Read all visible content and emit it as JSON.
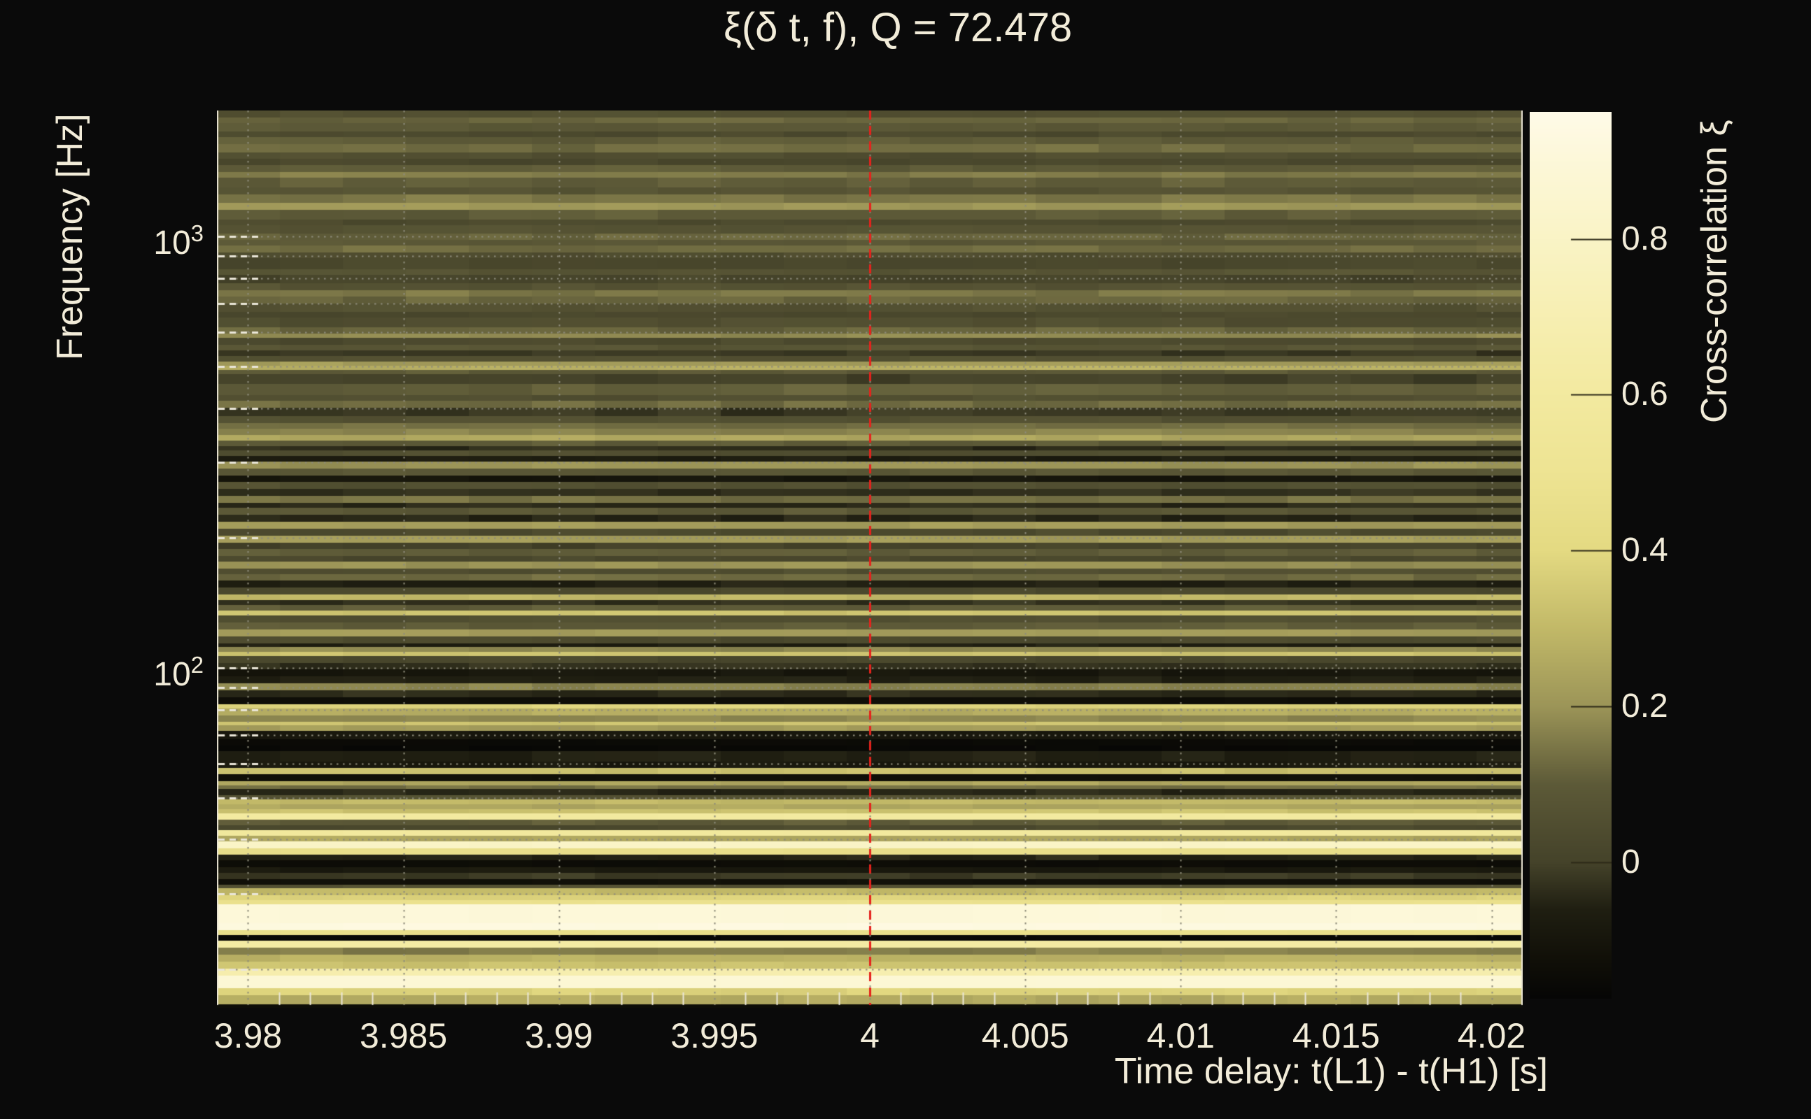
{
  "figure": {
    "background": "#0a0a0a",
    "text_color": "#f2ecd9",
    "frame_color": "#e8e3d2"
  },
  "chart_data": {
    "type": "heatmap",
    "title": "ξ(δ t, f), Q = 72.478",
    "xlabel": "Time delay: t(L1) - t(H1) [s]",
    "ylabel": "Frequency [Hz]",
    "x_range": [
      3.979,
      4.021
    ],
    "x_major_ticks": [
      3.98,
      3.985,
      3.99,
      3.995,
      4,
      4.005,
      4.01,
      4.015,
      4.02
    ],
    "x_tick_labels": [
      "3.98",
      "3.985",
      "3.99",
      "3.995",
      "4",
      "4.005",
      "4.01",
      "4.015",
      "4.02"
    ],
    "x_minor_step": 0.001,
    "y_scale": "log",
    "y_range_hz": [
      16.3,
      1958
    ],
    "y_major_ticks": [
      {
        "f": 100,
        "base": "10",
        "exp": "2"
      },
      {
        "f": 1000,
        "base": "10",
        "exp": "3"
      }
    ],
    "y_minor_ticks_hz": [
      20,
      30,
      40,
      50,
      60,
      70,
      80,
      90,
      200,
      300,
      400,
      500,
      600,
      700,
      800,
      900
    ],
    "marker_line": {
      "x": 4,
      "color": "#e6221c",
      "style": "dashed"
    },
    "grid": {
      "color": "#8d8b7a",
      "style": "dotted"
    },
    "colorbar": {
      "label": "Cross-correlation ξ",
      "range": [
        -0.175,
        0.963
      ],
      "ticks": [
        0,
        0.2,
        0.4,
        0.6,
        0.8
      ],
      "tick_labels": [
        "0",
        "0.2",
        "0.4",
        "0.6",
        "0.8"
      ]
    },
    "colormap": [
      [
        -0.175,
        "#060605"
      ],
      [
        -0.12,
        "#121109"
      ],
      [
        -0.06,
        "#201f12"
      ],
      [
        0.0,
        "#45432a"
      ],
      [
        0.1,
        "#5d5a38"
      ],
      [
        0.2,
        "#9c9558"
      ],
      [
        0.3,
        "#c2b968"
      ],
      [
        0.4,
        "#e4da82"
      ],
      [
        0.5,
        "#eee493"
      ],
      [
        0.6,
        "#f3eaa0"
      ],
      [
        0.7,
        "#f7efb2"
      ],
      [
        0.8,
        "#faf4c6"
      ],
      [
        0.9,
        "#fdf8d9"
      ],
      [
        0.963,
        "#fffbe8"
      ]
    ],
    "rows": [
      [
        10,
        0.06
      ],
      [
        8,
        0.12
      ],
      [
        12,
        0.09
      ],
      [
        8,
        0.03
      ],
      [
        10,
        0.1
      ],
      [
        12,
        0.13
      ],
      [
        9,
        0.05
      ],
      [
        9,
        0.02
      ],
      [
        10,
        0.1
      ],
      [
        8,
        0.16
      ],
      [
        14,
        0.11
      ],
      [
        10,
        0.07
      ],
      [
        12,
        0.15
      ],
      [
        10,
        0.21
      ],
      [
        14,
        0.1
      ],
      [
        8,
        0.03
      ],
      [
        12,
        0.07
      ],
      [
        9,
        0.12
      ],
      [
        8,
        0.09
      ],
      [
        10,
        0.13
      ],
      [
        8,
        0.04
      ],
      [
        16,
        0.02
      ],
      [
        8,
        0.08
      ],
      [
        12,
        0.01
      ],
      [
        10,
        0.07
      ],
      [
        9,
        0.15
      ],
      [
        10,
        0.12
      ],
      [
        12,
        0.06
      ],
      [
        8,
        0.02
      ],
      [
        14,
        0.05
      ],
      [
        9,
        0.12
      ],
      [
        6,
        0.18
      ],
      [
        10,
        0.03
      ],
      [
        8,
        0.08
      ],
      [
        8,
        -0.02
      ],
      [
        8,
        0.06
      ],
      [
        6,
        0.22
      ],
      [
        6,
        0.28
      ],
      [
        6,
        0.1
      ],
      [
        14,
        0.0
      ],
      [
        16,
        0.11
      ],
      [
        8,
        0.05
      ],
      [
        10,
        0.13
      ],
      [
        12,
        -0.02
      ],
      [
        10,
        0.06
      ],
      [
        8,
        0.13
      ],
      [
        9,
        0.17
      ],
      [
        8,
        0.25
      ],
      [
        8,
        0.1
      ],
      [
        6,
        -0.04
      ],
      [
        8,
        0.05
      ],
      [
        8,
        -0.07
      ],
      [
        10,
        0.2
      ],
      [
        10,
        0.09
      ],
      [
        9,
        -0.1
      ],
      [
        10,
        0.06
      ],
      [
        10,
        -0.03
      ],
      [
        10,
        0.14
      ],
      [
        7,
        -0.04
      ],
      [
        10,
        0.09
      ],
      [
        10,
        -0.05
      ],
      [
        10,
        0.22
      ],
      [
        10,
        0.03
      ],
      [
        10,
        0.22
      ],
      [
        9,
        0.0
      ],
      [
        10,
        0.1
      ],
      [
        8,
        0.02
      ],
      [
        10,
        0.2
      ],
      [
        8,
        0.05
      ],
      [
        9,
        0.13
      ],
      [
        10,
        -0.06
      ],
      [
        10,
        0.02
      ],
      [
        8,
        0.3
      ],
      [
        7,
        -0.03
      ],
      [
        8,
        0.1
      ],
      [
        7,
        0.33
      ],
      [
        10,
        0.05
      ],
      [
        10,
        0.1
      ],
      [
        10,
        0.22
      ],
      [
        10,
        0.03
      ],
      [
        5,
        -0.06
      ],
      [
        7,
        0.18
      ],
      [
        6,
        0.33
      ],
      [
        10,
        0.02
      ],
      [
        9,
        -0.03
      ],
      [
        10,
        -0.09
      ],
      [
        10,
        -0.06
      ],
      [
        10,
        0.17
      ],
      [
        10,
        -0.04
      ],
      [
        10,
        -0.13
      ],
      [
        6,
        0.38
      ],
      [
        10,
        0.27
      ],
      [
        9,
        0.18
      ],
      [
        5,
        0.33
      ],
      [
        8,
        0.22
      ],
      [
        12,
        -0.09
      ],
      [
        9,
        -0.15
      ],
      [
        8,
        -0.16
      ],
      [
        15,
        -0.06
      ],
      [
        9,
        -0.08
      ],
      [
        9,
        0.32
      ],
      [
        10,
        -0.12
      ],
      [
        6,
        0.25
      ],
      [
        5,
        0.14
      ],
      [
        9,
        -0.05
      ],
      [
        6,
        0.07
      ],
      [
        7,
        0.3
      ],
      [
        7,
        0.25
      ],
      [
        6,
        0.33
      ],
      [
        9,
        0.6
      ],
      [
        8,
        0.1
      ],
      [
        7,
        0.03
      ],
      [
        8,
        0.58
      ],
      [
        8,
        0.25
      ],
      [
        10,
        0.8
      ],
      [
        9,
        0.45
      ],
      [
        8,
        -0.05
      ],
      [
        10,
        -0.14
      ],
      [
        8,
        -0.08
      ],
      [
        9,
        -0.01
      ],
      [
        8,
        -0.12
      ],
      [
        5,
        0.07
      ],
      [
        10,
        0.3
      ],
      [
        7,
        0.38
      ],
      [
        6,
        0.47
      ],
      [
        27,
        0.9
      ],
      [
        10,
        0.93
      ],
      [
        7,
        0.45
      ],
      [
        8,
        -0.16
      ],
      [
        10,
        0.62
      ],
      [
        10,
        0.16
      ],
      [
        10,
        0.28
      ],
      [
        10,
        0.33
      ],
      [
        10,
        0.68
      ],
      [
        18,
        0.88
      ],
      [
        10,
        0.38
      ],
      [
        13,
        0.26
      ],
      [
        5,
        -0.1
      ]
    ]
  }
}
